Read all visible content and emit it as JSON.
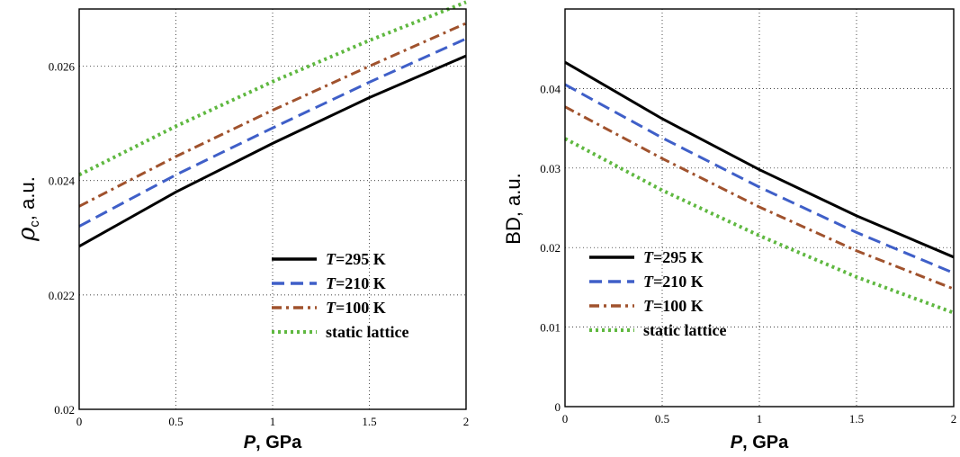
{
  "chart_data": [
    {
      "type": "line",
      "title": "",
      "xlabel_var": "P",
      "xlabel_rest": ", GPa",
      "ylabel_main": "ρ",
      "ylabel_sub": "c",
      "ylabel_rest": ", a.u.",
      "xlim": [
        0,
        2
      ],
      "ylim": [
        0.02,
        0.027
      ],
      "xticks": [
        0,
        0.5,
        1,
        1.5,
        2
      ],
      "xtick_labels": [
        "0",
        "0.5",
        "1",
        "1.5",
        "2"
      ],
      "yticks": [
        0.02,
        0.022,
        0.024,
        0.026
      ],
      "ytick_labels": [
        "0.02",
        "0.022",
        "0.024",
        "0.026"
      ],
      "grid": true,
      "legend_position": "bottom-right",
      "series": [
        {
          "name_var": "T",
          "name_rest": "=295 K",
          "color": "#000000",
          "style": "solid",
          "x": [
            0,
            0.5,
            1,
            1.5,
            2
          ],
          "y": [
            0.02285,
            0.0238,
            0.02465,
            0.02545,
            0.02618
          ]
        },
        {
          "name_var": "T",
          "name_rest": "=210 K",
          "color": "#3f5fc8",
          "style": "dash",
          "x": [
            0,
            0.5,
            1,
            1.5,
            2
          ],
          "y": [
            0.0232,
            0.0241,
            0.02492,
            0.02572,
            0.02648
          ]
        },
        {
          "name_var": "T",
          "name_rest": "=100 K",
          "color": "#a0522d",
          "style": "dashdot",
          "x": [
            0,
            0.5,
            1,
            1.5,
            2
          ],
          "y": [
            0.02355,
            0.02442,
            0.02523,
            0.026,
            0.02675
          ]
        },
        {
          "name_var": "",
          "name_rest": "static lattice",
          "color": "#5fb840",
          "style": "dot",
          "x": [
            0,
            0.5,
            1,
            1.5,
            2
          ],
          "y": [
            0.0241,
            0.02495,
            0.02573,
            0.02645,
            0.02712
          ]
        }
      ]
    },
    {
      "type": "line",
      "title": "",
      "xlabel_var": "P",
      "xlabel_rest": ", GPa",
      "ylabel_main": "BD",
      "ylabel_sub": "",
      "ylabel_rest": ", a.u.",
      "xlim": [
        0,
        2
      ],
      "ylim": [
        0,
        0.05
      ],
      "xticks": [
        0,
        0.5,
        1,
        1.5,
        2
      ],
      "xtick_labels": [
        "0",
        "0.5",
        "1",
        "1.5",
        "2"
      ],
      "yticks": [
        0,
        0.01,
        0.02,
        0.03,
        0.04
      ],
      "ytick_labels": [
        "0",
        "0.01",
        "0.02",
        "0.03",
        "0.04"
      ],
      "grid": true,
      "legend_position": "bottom-right",
      "series": [
        {
          "name_var": "T",
          "name_rest": "=295 K",
          "color": "#000000",
          "style": "solid",
          "x": [
            0,
            0.5,
            1,
            1.5,
            2
          ],
          "y": [
            0.0433,
            0.0362,
            0.0298,
            0.024,
            0.0188
          ]
        },
        {
          "name_var": "T",
          "name_rest": "=210 K",
          "color": "#3f5fc8",
          "style": "dash",
          "x": [
            0,
            0.5,
            1,
            1.5,
            2
          ],
          "y": [
            0.0405,
            0.0338,
            0.0276,
            0.0219,
            0.0168
          ]
        },
        {
          "name_var": "T",
          "name_rest": "=100 K",
          "color": "#a0522d",
          "style": "dashdot",
          "x": [
            0,
            0.5,
            1,
            1.5,
            2
          ],
          "y": [
            0.0377,
            0.0312,
            0.0251,
            0.0196,
            0.0148
          ]
        },
        {
          "name_var": "",
          "name_rest": "static lattice",
          "color": "#5fb840",
          "style": "dot",
          "x": [
            0,
            0.5,
            1,
            1.5,
            2
          ],
          "y": [
            0.0337,
            0.0272,
            0.0215,
            0.0163,
            0.0118
          ]
        }
      ]
    }
  ]
}
